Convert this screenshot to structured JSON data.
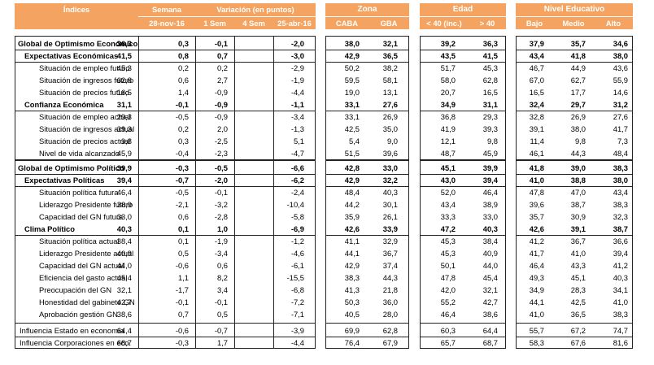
{
  "headers": {
    "indices": "Índices",
    "semana": "Semana",
    "semana_date": "28-nov-16",
    "variacion": "Variación (en puntos)",
    "sem1": "1 Sem",
    "sem4": "4 Sem",
    "date2": "25-abr-16",
    "zona": "Zona",
    "caba": "CABA",
    "gba": "GBA",
    "edad": "Edad",
    "edad_lt40": "< 40 (inc.)",
    "edad_gt40": "> 40",
    "nivel": "Nivel Educativo",
    "bajo": "Bajo",
    "medio": "Medio",
    "alto": "Alto"
  },
  "rows": [
    {
      "label": "Global de Optimismo Económico",
      "level": 0,
      "semana": "36,3",
      "v1": "0,3",
      "v4": "-0,1",
      "vd": "-2,0",
      "caba": "38,0",
      "gba": "32,1",
      "e1": "39,2",
      "e2": "36,3",
      "bajo": "37,9",
      "medio": "35,7",
      "alto": "34,6"
    },
    {
      "label": "Expectativas Económicas",
      "level": 1,
      "semana": "41,5",
      "v1": "0,8",
      "v4": "0,7",
      "vd": "-3,0",
      "caba": "42,9",
      "gba": "36,5",
      "e1": "43,5",
      "e2": "41,5",
      "bajo": "43,4",
      "medio": "41,8",
      "alto": "38,0"
    },
    {
      "label": "Situación de empleo futuro",
      "level": 2,
      "semana": "45,3",
      "v1": "0,2",
      "v4": "0,2",
      "vd": "-2,9",
      "caba": "50,2",
      "gba": "38,2",
      "e1": "51,7",
      "e2": "45,3",
      "bajo": "46,7",
      "medio": "44,9",
      "alto": "43,6"
    },
    {
      "label": "Situación de ingresos futuro",
      "level": 2,
      "semana": "62,8",
      "v1": "0,6",
      "v4": "2,7",
      "vd": "-1,9",
      "caba": "59,5",
      "gba": "58,1",
      "e1": "58,0",
      "e2": "62,8",
      "bajo": "67,0",
      "medio": "62,7",
      "alto": "55,9"
    },
    {
      "label": "Situación de precios futuro",
      "level": 2,
      "semana": "16,5",
      "v1": "1,4",
      "v4": "-0,9",
      "vd": "-4,4",
      "caba": "19,0",
      "gba": "13,1",
      "e1": "20,7",
      "e2": "16,5",
      "bajo": "16,5",
      "medio": "17,7",
      "alto": "14,6"
    },
    {
      "label": "Confianza Económica",
      "level": 1,
      "semana": "31,1",
      "v1": "-0,1",
      "v4": "-0,9",
      "vd": "-1,1",
      "caba": "33,1",
      "gba": "27,6",
      "e1": "34,9",
      "e2": "31,1",
      "bajo": "32,4",
      "medio": "29,7",
      "alto": "31,2"
    },
    {
      "label": "Situación de empleo actual",
      "level": 2,
      "semana": "29,3",
      "v1": "-0,5",
      "v4": "-0,9",
      "vd": "-3,4",
      "caba": "33,1",
      "gba": "26,9",
      "e1": "36,8",
      "e2": "29,3",
      "bajo": "32,8",
      "medio": "26,9",
      "alto": "27,6"
    },
    {
      "label": "Situación de ingresos actual",
      "level": 2,
      "semana": "39,3",
      "v1": "0,2",
      "v4": "2,0",
      "vd": "-1,3",
      "caba": "42,5",
      "gba": "35,0",
      "e1": "41,9",
      "e2": "39,3",
      "bajo": "39,1",
      "medio": "38,0",
      "alto": "41,7"
    },
    {
      "label": "Situación de precios actual",
      "level": 2,
      "semana": "9,8",
      "v1": "0,3",
      "v4": "-2,5",
      "vd": "5,1",
      "caba": "5,4",
      "gba": "9,0",
      "e1": "12,1",
      "e2": "9,8",
      "bajo": "11,4",
      "medio": "9,8",
      "alto": "7,3"
    },
    {
      "label": "Nivel de vida alcanzado",
      "level": 2,
      "semana": "45,9",
      "v1": "-0,4",
      "v4": "-2,3",
      "vd": "-4,7",
      "caba": "51,5",
      "gba": "39,6",
      "e1": "48,7",
      "e2": "45,9",
      "bajo": "46,1",
      "medio": "44,3",
      "alto": "48,4"
    },
    {
      "label": "Global de Optimismo Político",
      "level": 0,
      "semana": "39,9",
      "v1": "-0,3",
      "v4": "-0,5",
      "vd": "-6,6",
      "caba": "42,8",
      "gba": "33,0",
      "e1": "45,1",
      "e2": "39,9",
      "bajo": "41,8",
      "medio": "39,0",
      "alto": "38,3"
    },
    {
      "label": "Expectativas Políticas",
      "level": 1,
      "semana": "39,4",
      "v1": "-0,7",
      "v4": "-2,0",
      "vd": "-6,2",
      "caba": "42,9",
      "gba": "32,2",
      "e1": "43,0",
      "e2": "39,4",
      "bajo": "41,0",
      "medio": "38,8",
      "alto": "38,0"
    },
    {
      "label": "Situación política futura",
      "level": 2,
      "semana": "46,4",
      "v1": "-0,5",
      "v4": "-0,1",
      "vd": "-2,4",
      "caba": "48,4",
      "gba": "40,3",
      "e1": "52,0",
      "e2": "46,4",
      "bajo": "47,8",
      "medio": "47,0",
      "alto": "43,4"
    },
    {
      "label": "Liderazgo Presidente futuro",
      "level": 2,
      "semana": "38,9",
      "v1": "-2,1",
      "v4": "-3,2",
      "vd": "-10,4",
      "caba": "44,2",
      "gba": "30,1",
      "e1": "43,4",
      "e2": "38,9",
      "bajo": "39,6",
      "medio": "38,7",
      "alto": "38,3"
    },
    {
      "label": "Capacidad del GN futura",
      "level": 2,
      "semana": "33,0",
      "v1": "0,6",
      "v4": "-2,8",
      "vd": "-5,8",
      "caba": "35,9",
      "gba": "26,1",
      "e1": "33,3",
      "e2": "33,0",
      "bajo": "35,7",
      "medio": "30,9",
      "alto": "32,3"
    },
    {
      "label": "Clima Político",
      "level": 1,
      "semana": "40,3",
      "v1": "0,1",
      "v4": "1,0",
      "vd": "-6,9",
      "caba": "42,6",
      "gba": "33,9",
      "e1": "47,2",
      "e2": "40,3",
      "bajo": "42,6",
      "medio": "39,1",
      "alto": "38,7"
    },
    {
      "label": "Situación política actual",
      "level": 2,
      "semana": "38,4",
      "v1": "0,1",
      "v4": "-1,9",
      "vd": "-1,2",
      "caba": "41,1",
      "gba": "32,9",
      "e1": "45,3",
      "e2": "38,4",
      "bajo": "41,2",
      "medio": "36,7",
      "alto": "36,6"
    },
    {
      "label": "Liderazgo Presidente actual",
      "level": 2,
      "semana": "40,9",
      "v1": "0,5",
      "v4": "-3,4",
      "vd": "-4,6",
      "caba": "44,1",
      "gba": "36,7",
      "e1": "45,3",
      "e2": "40,9",
      "bajo": "41,7",
      "medio": "41,0",
      "alto": "39,4"
    },
    {
      "label": "Capacidad del GN actual",
      "level": 2,
      "semana": "44,0",
      "v1": "-0,6",
      "v4": "0,6",
      "vd": "-6,1",
      "caba": "42,9",
      "gba": "37,4",
      "e1": "50,1",
      "e2": "44,0",
      "bajo": "46,4",
      "medio": "43,3",
      "alto": "41,2"
    },
    {
      "label": "Eficiencia del gasto actual",
      "level": 2,
      "semana": "45,4",
      "v1": "1,1",
      "v4": "8,2",
      "vd": "-15,5",
      "caba": "38,3",
      "gba": "44,3",
      "e1": "47,8",
      "e2": "45,4",
      "bajo": "49,3",
      "medio": "45,1",
      "alto": "40,3"
    },
    {
      "label": "Preocupación del GN",
      "level": 2,
      "semana": "32,1",
      "v1": "-1,7",
      "v4": "3,4",
      "vd": "-6,8",
      "caba": "41,3",
      "gba": "21,8",
      "e1": "42,0",
      "e2": "32,1",
      "bajo": "34,9",
      "medio": "28,3",
      "alto": "34,1"
    },
    {
      "label": "Honestidad del gabinete GN",
      "level": 2,
      "semana": "42,7",
      "v1": "-0,1",
      "v4": "-0,1",
      "vd": "-7,2",
      "caba": "50,3",
      "gba": "36,0",
      "e1": "55,2",
      "e2": "42,7",
      "bajo": "44,1",
      "medio": "42,5",
      "alto": "41,0"
    },
    {
      "label": "Aprobación gestión GN",
      "level": 2,
      "semana": "38,6",
      "v1": "0,7",
      "v4": "0,5",
      "vd": "-7,1",
      "caba": "40,5",
      "gba": "28,0",
      "e1": "46,4",
      "e2": "38,6",
      "bajo": "41,0",
      "medio": "36,5",
      "alto": "38,3"
    },
    {
      "label": "Influencia Estado en economía",
      "level": 3,
      "semana": "64,4",
      "v1": "-0,6",
      "v4": "-0,7",
      "vd": "-3,9",
      "caba": "69,9",
      "gba": "62,8",
      "e1": "60,3",
      "e2": "64,4",
      "bajo": "55,7",
      "medio": "67,2",
      "alto": "74,7"
    },
    {
      "label": "Influencia Corporaciones en eco.",
      "level": 3,
      "semana": "68,7",
      "v1": "-0,3",
      "v4": "1,7",
      "vd": "-4,4",
      "caba": "76,4",
      "gba": "67,9",
      "e1": "65,7",
      "e2": "68,7",
      "bajo": "58,3",
      "medio": "67,6",
      "alto": "81,6"
    }
  ]
}
